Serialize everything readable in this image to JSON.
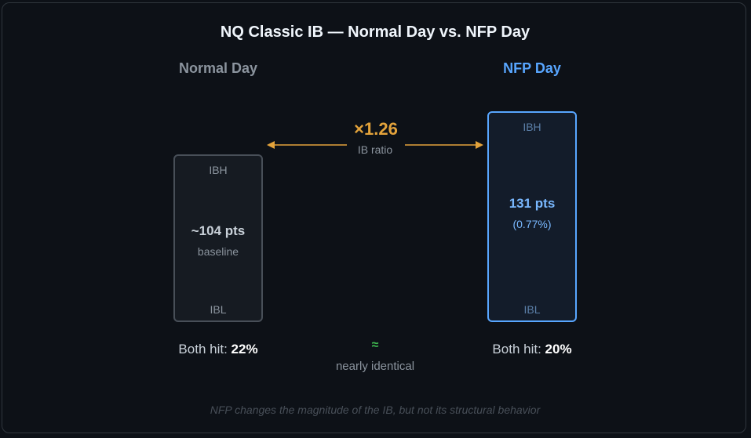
{
  "title": "NQ Classic IB — Normal Day vs. NFP Day",
  "normal": {
    "heading": "Normal Day",
    "top_label": "IBH",
    "bottom_label": "IBL",
    "value": "~104 pts",
    "sub": "baseline",
    "hit_prefix": "Both hit: ",
    "hit_value": "22%"
  },
  "nfp": {
    "heading": "NFP Day",
    "top_label": "IBH",
    "bottom_label": "IBL",
    "value": "131 pts",
    "sub": "(0.77%)",
    "hit_prefix": "Both hit: ",
    "hit_value": "20%"
  },
  "ratio": {
    "value": "×1.26",
    "label": "IB ratio"
  },
  "comparison": {
    "symbol": "≈",
    "label": "nearly identical"
  },
  "footnote": "NFP changes the magnitude of the IB, but not its structural behavior",
  "colors": {
    "background": "#0d1117",
    "accent_blue": "#58a6ff",
    "accent_orange": "#e3a33b",
    "accent_green": "#3fb950"
  }
}
